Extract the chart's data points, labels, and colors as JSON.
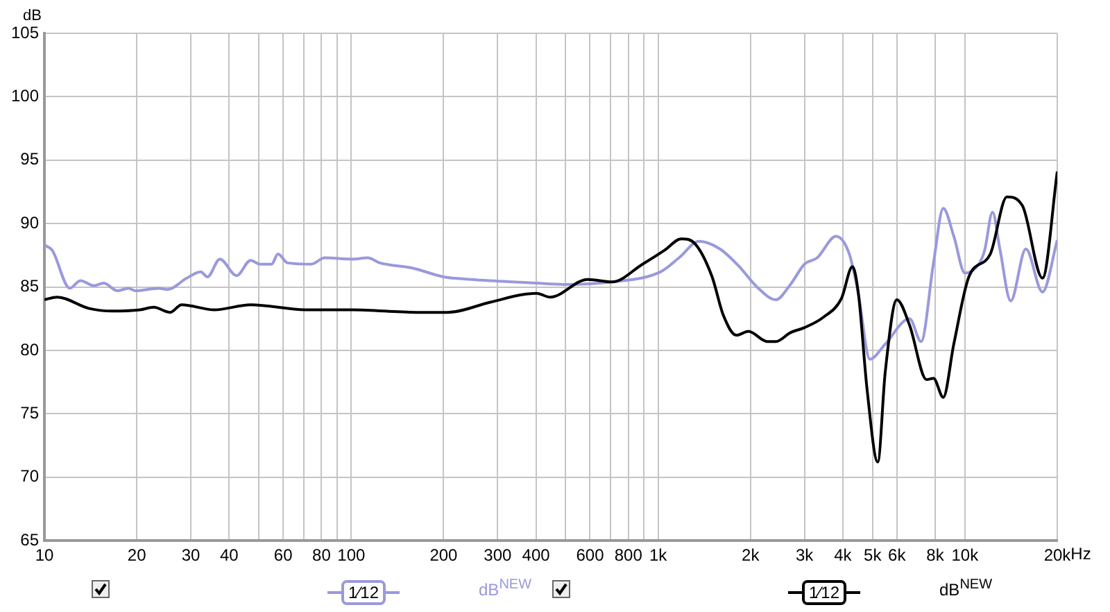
{
  "chart_data": {
    "type": "line",
    "ylabel": "dB",
    "xlim": [
      10,
      20000
    ],
    "ylim": [
      65,
      105
    ],
    "xticks": [
      10,
      20,
      30,
      40,
      {
        "value": 50,
        "label": null
      },
      60,
      {
        "value": 70,
        "label": null
      },
      80,
      {
        "value": 90,
        "label": null
      },
      100,
      200,
      300,
      400,
      {
        "value": 500,
        "label": null
      },
      600,
      {
        "value": 700,
        "label": null
      },
      800,
      {
        "value": 900,
        "label": null
      },
      {
        "value": 1000,
        "label": "1k"
      },
      {
        "value": 2000,
        "label": "2k"
      },
      {
        "value": 3000,
        "label": "3k"
      },
      {
        "value": 4000,
        "label": "4k"
      },
      {
        "value": 5000,
        "label": "5k"
      },
      {
        "value": 6000,
        "label": "6k"
      },
      {
        "value": 8000,
        "label": "8k"
      },
      {
        "value": 10000,
        "label": "10k"
      },
      {
        "value": 20000,
        "label": "20k"
      }
    ],
    "xlabel": "Hz",
    "yticks": [
      65,
      70,
      75,
      80,
      85,
      90,
      95,
      100,
      105
    ],
    "log": "x",
    "grid": true,
    "annotations": [
      "1⁄12",
      "dB$^{NEW}$",
      "1⁄12",
      "dB$^{NEW}$"
    ],
    "series": [
      {
        "color": "#9999dd",
        "x": [
          10,
          10.6,
          12.1,
          13.1,
          14.5,
          15.6,
          17.3,
          18.8,
          19.8,
          23.6,
          25.2,
          29.1,
          32.3,
          34,
          37.3,
          42.3,
          47,
          50.4,
          55,
          57.7,
          62,
          74,
          82,
          101,
          113,
          124,
          158,
          200,
          246,
          336,
          402,
          495,
          708,
          1020,
          1170,
          1360,
          1590,
          1840,
          2100,
          2420,
          2700,
          3000,
          3300,
          3800,
          4200,
          4500,
          4900,
          5500,
          6600,
          7200,
          7900,
          8500,
          9200,
          10000,
          11100,
          11600,
          12300,
          13000,
          14100,
          15800,
          17900,
          20000
        ],
        "values": [
          88.3,
          87.9,
          84.9,
          85.5,
          85.1,
          85.3,
          84.7,
          84.9,
          84.7,
          84.9,
          84.8,
          85.7,
          86.2,
          85.8,
          87.2,
          85.9,
          87.1,
          86.8,
          86.8,
          87.6,
          86.9,
          86.8,
          87.3,
          87.2,
          87.3,
          86.9,
          86.5,
          85.8,
          85.6,
          85.4,
          85.3,
          85.2,
          85.4,
          86.2,
          87.3,
          88.6,
          88.0,
          86.6,
          85.0,
          84.0,
          85.2,
          86.8,
          87.3,
          89.0,
          87.6,
          84.4,
          79.3,
          80.5,
          82.5,
          80.7,
          86.9,
          91.2,
          89.0,
          86.1,
          86.8,
          87.9,
          90.9,
          88.0,
          83.9,
          88.0,
          84.6,
          88.7
        ]
      },
      {
        "color": "#000000",
        "x": [
          10,
          11,
          14,
          16.6,
          20.5,
          22.7,
          25.7,
          28,
          35.8,
          47,
          71,
          101,
          163,
          205,
          284,
          362,
          402,
          445,
          590,
          708,
          890,
          1050,
          1190,
          1320,
          1500,
          1630,
          1800,
          1970,
          2270,
          2420,
          2700,
          3000,
          3450,
          3960,
          4300,
          4500,
          4800,
          5200,
          5500,
          6000,
          6600,
          7500,
          7900,
          8500,
          9200,
          10300,
          12100,
          13700,
          15400,
          17900,
          20000
        ],
        "values": [
          84.0,
          84.2,
          83.3,
          83.1,
          83.2,
          83.4,
          83.0,
          83.6,
          83.2,
          83.6,
          83.2,
          83.2,
          83.0,
          83.0,
          83.8,
          84.4,
          84.5,
          84.2,
          85.6,
          85.4,
          86.8,
          87.9,
          88.8,
          88.4,
          85.8,
          82.8,
          81.2,
          81.5,
          80.7,
          80.7,
          81.4,
          81.8,
          82.6,
          84.1,
          86.6,
          84.4,
          76.9,
          71.2,
          78.3,
          84.0,
          82.0,
          77.7,
          77.8,
          76.3,
          80.5,
          85.8,
          87.6,
          92.1,
          91.4,
          85.7,
          94.1
        ]
      }
    ]
  }
}
